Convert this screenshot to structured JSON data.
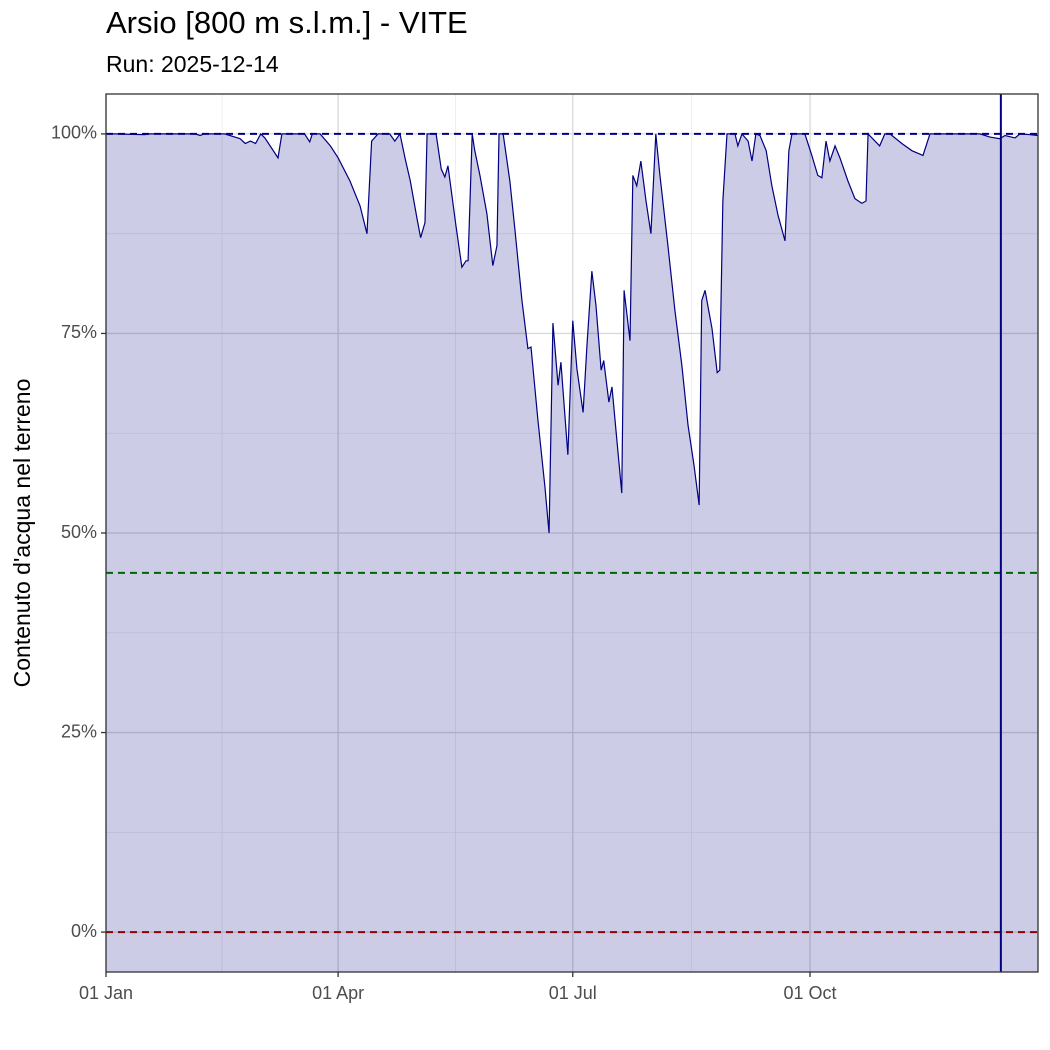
{
  "chart_data": {
    "type": "area",
    "title": "Arsio [800 m s.l.m.] - VITE",
    "subtitle": "Run: 2025-12-14",
    "ylabel": "Contenuto d'acqua nel terreno",
    "x": [
      0,
      3.5,
      15,
      17,
      34.5,
      36.5,
      38,
      46,
      52,
      54,
      56,
      58,
      60,
      61.6,
      66.7,
      68.2,
      77,
      79,
      80,
      83,
      87,
      90,
      94.6,
      98.5,
      101.2,
      103,
      105.5,
      110,
      112,
      114,
      116,
      118,
      120.6,
      122,
      123.7,
      124.5,
      128,
      130,
      131.4,
      132.6,
      135.7,
      138,
      139.6,
      140.4,
      142,
      143,
      145,
      147.7,
      150,
      151.6,
      152.4,
      154,
      156.6,
      158.6,
      161.3,
      163.6,
      164.8,
      167.5,
      170.2,
      171.8,
      173.3,
      175.3,
      176.4,
      179.1,
      181,
      182.6,
      185,
      186.5,
      188.4,
      190,
      192,
      193,
      195,
      196.2,
      200,
      200.9,
      203.2,
      204.3,
      205.8,
      207.4,
      209.4,
      211.3,
      213.2,
      214.8,
      217.9,
      220.6,
      223.3,
      225.7,
      228,
      230,
      231,
      232.3,
      235,
      237,
      238,
      239.2,
      240.8,
      243.9,
      245,
      246.6,
      249,
      250.5,
      252,
      253.6,
      256,
      258.2,
      260.6,
      263.3,
      264.8,
      266,
      271,
      273.7,
      276,
      277.6,
      279.2,
      280.7,
      282.7,
      284.6,
      287.7,
      290.4,
      293.1,
      294.7,
      295.5,
      298.2,
      300,
      302,
      304,
      308.6,
      312.5,
      316.8,
      319.5,
      338.9,
      342.8,
      346.6,
      348.6,
      352.5,
      354.4,
      358.3,
      361.4
    ],
    "series": [
      {
        "color": "#000080",
        "fill": "#000080",
        "values": [
          100,
          100,
          99.9,
          100,
          100,
          99.8,
          100,
          100,
          99.4,
          98.8,
          99.1,
          98.8,
          100,
          99.5,
          97,
          100,
          100,
          99,
          100,
          100,
          98.5,
          97,
          94.1,
          91,
          87.5,
          99.1,
          100,
          100,
          99.1,
          100,
          96.9,
          94.1,
          89.4,
          87,
          88.9,
          100,
          100,
          95.6,
          94.6,
          96,
          88.5,
          83.3,
          84.1,
          84.1,
          100,
          97.9,
          94.8,
          90,
          83.5,
          86,
          100,
          100,
          94.1,
          87.9,
          79.1,
          73.1,
          73.3,
          64.1,
          55.8,
          50,
          76.3,
          68.5,
          71.4,
          59.8,
          76.6,
          70.6,
          65.1,
          73.5,
          82.8,
          78.5,
          70.4,
          71.6,
          66.4,
          68.3,
          55,
          80.4,
          74.1,
          94.8,
          93.5,
          96.6,
          91.6,
          87.5,
          100,
          94.8,
          86,
          77.9,
          71,
          63.5,
          58.5,
          53.5,
          79.1,
          80.4,
          75.6,
          70.1,
          70.4,
          91.6,
          100,
          100,
          98.5,
          100,
          99.1,
          96.6,
          100,
          99.8,
          97.9,
          93.5,
          89.8,
          86.6,
          97.9,
          100,
          100,
          97.3,
          94.8,
          94.5,
          99.1,
          96.6,
          98.5,
          97,
          94.1,
          91.9,
          91.3,
          91.6,
          100,
          99.1,
          98.5,
          100,
          100,
          98.8,
          97.9,
          97.3,
          100,
          100,
          99.6,
          99.4,
          99.8,
          99.5,
          100,
          99.9,
          99.8
        ]
      }
    ],
    "xlim": [
      0,
      361.4
    ],
    "ylim": [
      -5,
      105
    ],
    "xticks": [
      {
        "value": 0,
        "label": "01 Jan"
      },
      {
        "value": 90,
        "label": "01 Apr"
      },
      {
        "value": 181,
        "label": "01 Jul"
      },
      {
        "value": 273,
        "label": "01 Oct"
      }
    ],
    "yticks": [
      {
        "value": 0,
        "label": "0%"
      },
      {
        "value": 25,
        "label": "25%"
      },
      {
        "value": 50,
        "label": "50%"
      },
      {
        "value": 75,
        "label": "75%"
      },
      {
        "value": 100,
        "label": "100%"
      }
    ],
    "hlines": [
      {
        "value": 100,
        "color": "#00008b"
      },
      {
        "value": 45,
        "color": "#006400"
      },
      {
        "value": 0,
        "color": "#8b0000"
      }
    ],
    "vlines": [
      {
        "value": 347,
        "color": "#000080"
      }
    ],
    "grid": true
  }
}
